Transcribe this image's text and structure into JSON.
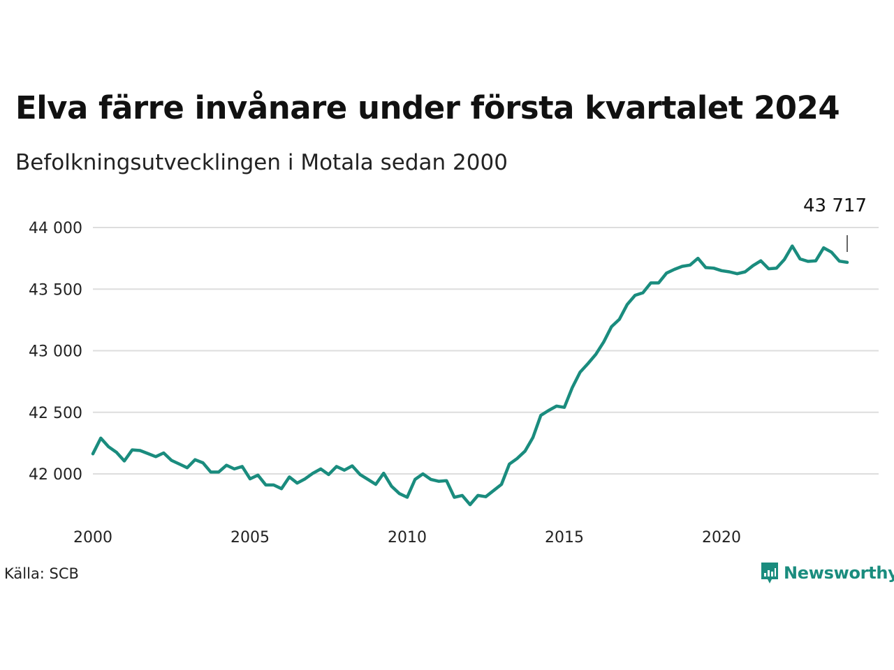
{
  "title": "Elva färre invånare under första kvartalet 2024",
  "subtitle": "Befolkningsutvecklingen i Motala sedan 2000",
  "source": "Källa: SCB",
  "brand": "Newsworthy",
  "colors": {
    "line": "#1a8c7e",
    "grid": "#dddddd",
    "brand": "#1a8c7e"
  },
  "chart_data": {
    "type": "line",
    "title": "Elva färre invånare under första kvartalet 2024",
    "subtitle": "Befolkningsutvecklingen i Motala sedan 2000",
    "xlabel": "",
    "ylabel": "",
    "xlim": [
      2000,
      2024.5
    ],
    "ylim": [
      41800,
      44000
    ],
    "x_ticks": [
      2000,
      2005,
      2010,
      2015,
      2020
    ],
    "x_tick_labels": [
      "2000",
      "2005",
      "2010",
      "2015",
      "2020"
    ],
    "y_ticks": [
      42000,
      42500,
      43000,
      43500,
      44000
    ],
    "y_tick_labels": [
      "42 000",
      "42 500",
      "43 000",
      "43 500",
      "44 000"
    ],
    "grid": true,
    "end_label": "43 717",
    "series": [
      {
        "x": [
          2000.0,
          2000.25,
          2000.5,
          2000.75,
          2001.0,
          2001.25,
          2001.5,
          2001.75,
          2002.0,
          2002.25,
          2002.5,
          2002.75,
          2003.0,
          2003.25,
          2003.5,
          2003.75,
          2004.0,
          2004.25,
          2004.5,
          2004.75,
          2005.0,
          2005.25,
          2005.5,
          2005.75,
          2006.0,
          2006.25,
          2006.5,
          2006.75,
          2007.0,
          2007.25,
          2007.5,
          2007.75,
          2008.0,
          2008.25,
          2008.5,
          2008.75,
          2009.0,
          2009.25,
          2009.5,
          2009.75,
          2010.0,
          2010.25,
          2010.5,
          2010.75,
          2011.0,
          2011.25,
          2011.5,
          2011.75,
          2012.0,
          2012.25,
          2012.5,
          2012.75,
          2013.0,
          2013.25,
          2013.5,
          2013.75,
          2014.0,
          2014.25,
          2014.5,
          2014.75,
          2015.0,
          2015.25,
          2015.5,
          2015.75,
          2016.0,
          2016.25,
          2016.5,
          2016.75,
          2017.0,
          2017.25,
          2017.5,
          2017.75,
          2018.0,
          2018.25,
          2018.5,
          2018.75,
          2019.0,
          2019.25,
          2019.5,
          2019.75,
          2020.0,
          2020.25,
          2020.5,
          2020.75,
          2021.0,
          2021.25,
          2021.5,
          2021.75,
          2022.0,
          2022.25,
          2022.5,
          2022.75,
          2023.0,
          2023.25,
          2023.5,
          2023.75,
          2024.0
        ],
        "values": [
          42163,
          42290,
          42220,
          42175,
          42105,
          42195,
          42190,
          42165,
          42140,
          42170,
          42110,
          42080,
          42050,
          42115,
          42090,
          42015,
          42015,
          42070,
          42040,
          42060,
          41960,
          41990,
          41910,
          41910,
          41880,
          41975,
          41925,
          41960,
          42005,
          42040,
          41995,
          42060,
          42030,
          42065,
          41995,
          41955,
          41915,
          42005,
          41900,
          41840,
          41810,
          41955,
          42000,
          41955,
          41940,
          41945,
          41810,
          41825,
          41750,
          41825,
          41815,
          41865,
          41915,
          42080,
          42125,
          42185,
          42295,
          42475,
          42515,
          42550,
          42540,
          42700,
          42825,
          42895,
          42970,
          43070,
          43195,
          43255,
          43375,
          43450,
          43470,
          43550,
          43550,
          43630,
          43660,
          43685,
          43695,
          43750,
          43675,
          43670,
          43650,
          43640,
          43625,
          43640,
          43690,
          43730,
          43665,
          43670,
          43740,
          43850,
          43745,
          43725,
          43730,
          43835,
          43800,
          43727,
          43717
        ]
      }
    ]
  }
}
